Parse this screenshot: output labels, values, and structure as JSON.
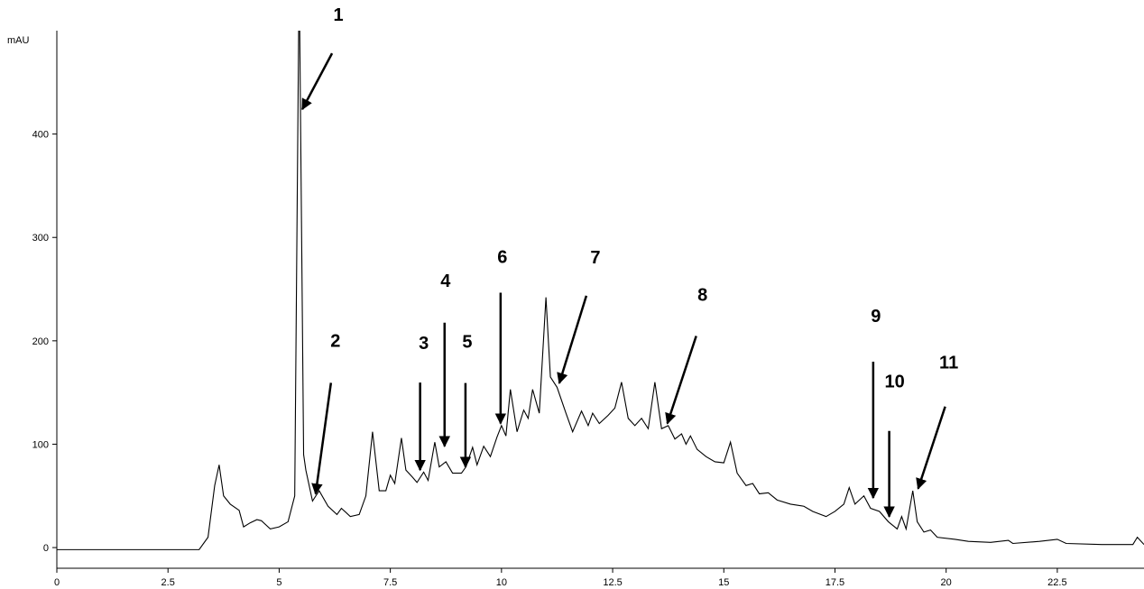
{
  "chart_data": {
    "type": "line",
    "y_label": "mAU",
    "x": [
      0,
      1,
      2,
      3,
      3.2,
      3.4,
      3.55,
      3.65,
      3.75,
      3.9,
      4.1,
      4.2,
      4.35,
      4.5,
      4.6,
      4.8,
      5.0,
      5.2,
      5.35,
      5.45,
      5.55,
      5.6,
      5.75,
      5.9,
      6.1,
      6.3,
      6.4,
      6.6,
      6.8,
      6.95,
      7.1,
      7.25,
      7.4,
      7.5,
      7.6,
      7.75,
      7.85,
      8.0,
      8.1,
      8.25,
      8.35,
      8.5,
      8.6,
      8.75,
      8.9,
      9.1,
      9.2,
      9.35,
      9.45,
      9.6,
      9.75,
      9.9,
      10.0,
      10.1,
      10.2,
      10.35,
      10.5,
      10.6,
      10.7,
      10.85,
      11.0,
      11.1,
      11.25,
      11.45,
      11.6,
      11.8,
      11.95,
      12.05,
      12.2,
      12.4,
      12.55,
      12.7,
      12.85,
      13.0,
      13.15,
      13.3,
      13.45,
      13.6,
      13.75,
      13.9,
      14.05,
      14.15,
      14.25,
      14.4,
      14.6,
      14.8,
      15.0,
      15.15,
      15.3,
      15.5,
      15.65,
      15.8,
      16.0,
      16.2,
      16.5,
      16.8,
      17.0,
      17.3,
      17.5,
      17.7,
      17.82,
      17.95,
      18.15,
      18.3,
      18.5,
      18.7,
      18.9,
      19.0,
      19.1,
      19.25,
      19.35,
      19.5,
      19.65,
      19.8,
      20.2,
      20.5,
      21.0,
      21.4,
      21.5,
      22.1,
      22.5,
      22.7,
      23.5,
      24.2,
      24.3,
      24.45
    ],
    "values": [
      -2,
      -2,
      -2,
      -2,
      -2,
      10,
      60,
      80,
      50,
      42,
      36,
      20,
      24,
      27,
      26,
      18,
      20,
      25,
      50,
      560,
      90,
      75,
      45,
      55,
      40,
      32,
      38,
      30,
      32,
      50,
      112,
      55,
      55,
      70,
      62,
      106,
      75,
      68,
      63,
      73,
      65,
      102,
      78,
      83,
      72,
      72,
      78,
      97,
      80,
      98,
      88,
      107,
      118,
      108,
      153,
      112,
      133,
      125,
      153,
      130,
      242,
      165,
      155,
      130,
      112,
      132,
      118,
      130,
      120,
      128,
      135,
      160,
      125,
      118,
      125,
      115,
      160,
      115,
      118,
      105,
      110,
      100,
      108,
      95,
      88,
      83,
      82,
      102,
      72,
      60,
      62,
      52,
      53,
      46,
      42,
      40,
      35,
      30,
      35,
      42,
      58,
      42,
      50,
      38,
      35,
      25,
      18,
      30,
      18,
      55,
      25,
      15,
      17,
      10,
      8,
      6,
      5,
      7,
      4,
      6,
      8,
      4,
      3,
      3,
      10,
      3
    ],
    "color": "#000000",
    "xlim": [
      0,
      24.45
    ],
    "ylim": [
      -20,
      500
    ],
    "xticks": [
      0,
      2.5,
      5,
      7.5,
      10,
      12.5,
      15,
      17.5,
      20,
      22.5
    ],
    "yticks": [
      0,
      100,
      200,
      300,
      400
    ],
    "annotations": [
      {
        "text": "1",
        "x": 5.52,
        "y": 424
      },
      {
        "text": "2",
        "x": 5.82,
        "y": 52
      },
      {
        "text": "3",
        "x": 8.17,
        "y": 75
      },
      {
        "text": "4",
        "x": 8.72,
        "y": 98
      },
      {
        "text": "5",
        "x": 9.19,
        "y": 78
      },
      {
        "text": "6",
        "x": 9.98,
        "y": 120
      },
      {
        "text": "7",
        "x": 11.3,
        "y": 159
      },
      {
        "text": "8",
        "x": 13.73,
        "y": 120
      },
      {
        "text": "9",
        "x": 18.36,
        "y": 48
      },
      {
        "text": "10",
        "x": 18.72,
        "y": 30
      },
      {
        "text": "11",
        "x": 19.37,
        "y": 57
      }
    ]
  }
}
